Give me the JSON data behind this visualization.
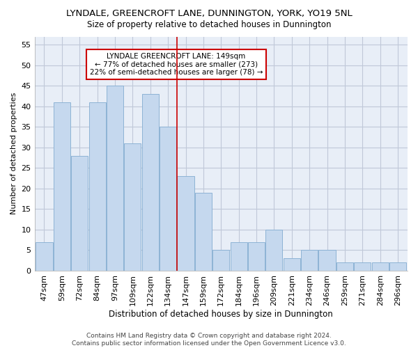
{
  "title1": "LYNDALE, GREENCROFT LANE, DUNNINGTON, YORK, YO19 5NL",
  "title2": "Size of property relative to detached houses in Dunnington",
  "xlabel": "Distribution of detached houses by size in Dunnington",
  "ylabel": "Number of detached properties",
  "categories": [
    "47sqm",
    "59sqm",
    "72sqm",
    "84sqm",
    "97sqm",
    "109sqm",
    "122sqm",
    "134sqm",
    "147sqm",
    "159sqm",
    "172sqm",
    "184sqm",
    "196sqm",
    "209sqm",
    "221sqm",
    "234sqm",
    "246sqm",
    "259sqm",
    "271sqm",
    "284sqm",
    "296sqm"
  ],
  "values": [
    7,
    41,
    28,
    41,
    45,
    31,
    43,
    35,
    23,
    19,
    5,
    7,
    7,
    10,
    3,
    5,
    5,
    2,
    2,
    2,
    2
  ],
  "bar_color": "#c5d8ee",
  "bar_edge_color": "#8db3d5",
  "marker_index": 8,
  "marker_line_color": "#cc0000",
  "annotation_line1": "LYNDALE GREENCROFT LANE: 149sqm",
  "annotation_line2": "← 77% of detached houses are smaller (273)",
  "annotation_line3": "22% of semi-detached houses are larger (78) →",
  "annotation_box_color": "#cc0000",
  "background_color": "#ffffff",
  "plot_bg_color": "#e8eef7",
  "grid_color": "#c0c8d8",
  "footer": "Contains HM Land Registry data © Crown copyright and database right 2024.\nContains public sector information licensed under the Open Government Licence v3.0.",
  "ylim": [
    0,
    57
  ],
  "yticks": [
    0,
    5,
    10,
    15,
    20,
    25,
    30,
    35,
    40,
    45,
    50,
    55
  ]
}
